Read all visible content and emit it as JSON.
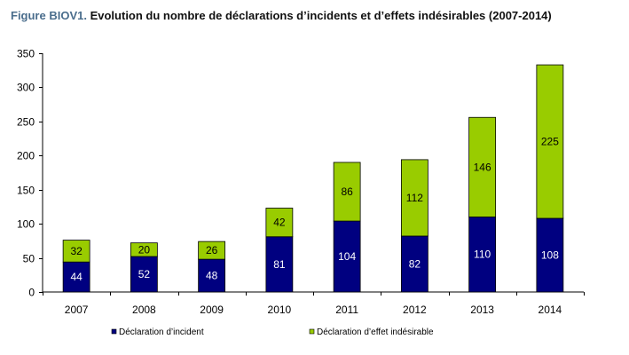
{
  "figure": {
    "prefix": "Figure BIOV1.",
    "title": "Evolution du nombre de déclarations d’incidents et d’effets indésirables (2007-2014)"
  },
  "chart_data": {
    "type": "bar",
    "stacked": true,
    "categories": [
      "2007",
      "2008",
      "2009",
      "2010",
      "2011",
      "2012",
      "2013",
      "2014"
    ],
    "series": [
      {
        "name": "Déclaration d’incident",
        "color": "#000080",
        "label_color": "#ffffff",
        "values": [
          44,
          52,
          48,
          81,
          104,
          82,
          110,
          108
        ]
      },
      {
        "name": "Déclaration d’effet indésirable",
        "color": "#99cc00",
        "label_color": "#000000",
        "values": [
          32,
          20,
          26,
          42,
          86,
          112,
          146,
          225
        ]
      }
    ],
    "ylim": [
      0,
      350
    ],
    "yticks": [
      0,
      50,
      100,
      150,
      200,
      250,
      300,
      350
    ],
    "grid": false,
    "legend_position": "bottom"
  }
}
